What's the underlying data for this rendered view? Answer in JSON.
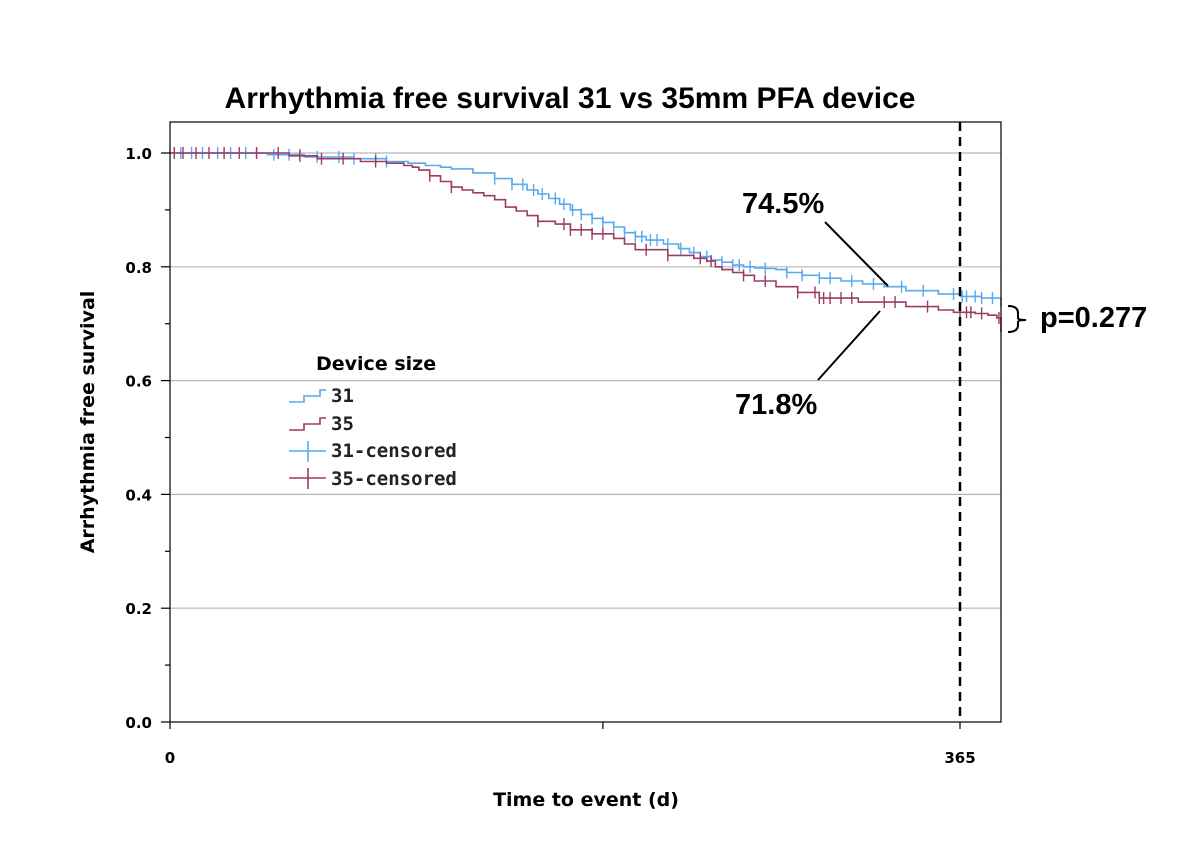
{
  "chart_data": {
    "type": "line",
    "subtype": "kaplan-meier step",
    "title": "Arrhythmia free survival 31 vs 35mm PFA device",
    "xlabel": "Time to event (d)",
    "ylabel": "Arrhythmia free survival",
    "xlim": [
      0,
      420
    ],
    "ylim": [
      0,
      1.02
    ],
    "x_ticks": [
      {
        "value": 0,
        "label": "0"
      },
      {
        "value": 200,
        "label": ""
      },
      {
        "value": 365,
        "label": "365"
      }
    ],
    "y_ticks": [
      {
        "value": 0.0,
        "label": "0.0"
      },
      {
        "value": 0.1,
        "label": ""
      },
      {
        "value": 0.2,
        "label": "0.2"
      },
      {
        "value": 0.3,
        "label": ""
      },
      {
        "value": 0.4,
        "label": "0.4"
      },
      {
        "value": 0.5,
        "label": ""
      },
      {
        "value": 0.6,
        "label": "0.6"
      },
      {
        "value": 0.7,
        "label": ""
      },
      {
        "value": 0.8,
        "label": "0.8"
      },
      {
        "value": 0.9,
        "label": ""
      },
      {
        "value": 1.0,
        "label": "1.0"
      }
    ],
    "grid": "horizontal at labeled y ticks",
    "reference_line": {
      "x": 365,
      "style": "dashed"
    },
    "legend": {
      "title": "Device size",
      "placement": "middle-left",
      "entries": [
        {
          "label": "31",
          "kind": "line",
          "color": "#5aa9ec"
        },
        {
          "label": "35",
          "kind": "line",
          "color": "#9c3b63"
        },
        {
          "label": "31-censored",
          "kind": "censor",
          "color": "#5aa9ec"
        },
        {
          "label": "35-censored",
          "kind": "censor",
          "color": "#9c3b63"
        }
      ]
    },
    "series": [
      {
        "name": "31",
        "color": "#5aa9ec",
        "x": [
          0,
          45,
          62,
          85,
          100,
          110,
          118,
          125,
          130,
          140,
          150,
          158,
          165,
          170,
          175,
          180,
          185,
          190,
          195,
          200,
          205,
          210,
          215,
          220,
          228,
          235,
          240,
          245,
          250,
          255,
          260,
          265,
          270,
          275,
          280,
          285,
          292,
          300,
          310,
          320,
          330,
          340,
          355,
          365,
          375,
          390,
          420
        ],
        "y": [
          1.0,
          0.997,
          0.993,
          0.99,
          0.985,
          0.982,
          0.978,
          0.975,
          0.972,
          0.965,
          0.955,
          0.945,
          0.935,
          0.928,
          0.92,
          0.91,
          0.9,
          0.892,
          0.885,
          0.878,
          0.87,
          0.86,
          0.853,
          0.847,
          0.84,
          0.832,
          0.825,
          0.818,
          0.812,
          0.808,
          0.803,
          0.8,
          0.798,
          0.797,
          0.795,
          0.79,
          0.785,
          0.78,
          0.775,
          0.77,
          0.765,
          0.758,
          0.752,
          0.748,
          0.745,
          0.738,
          0.73
        ],
        "censored_x": [
          2,
          5,
          10,
          15,
          22,
          28,
          35,
          40,
          48,
          55,
          60,
          68,
          78,
          85,
          95,
          100,
          150,
          158,
          163,
          168,
          172,
          178,
          182,
          186,
          190,
          195,
          200,
          205,
          210,
          215,
          218,
          222,
          225,
          230,
          236,
          242,
          248,
          255,
          260,
          263,
          268,
          275,
          285,
          292,
          300,
          305,
          315,
          325,
          338,
          348,
          362,
          366,
          368,
          372,
          375,
          380,
          385,
          390,
          395,
          400,
          405,
          410,
          415
        ]
      },
      {
        "name": "35",
        "color": "#9c3b63",
        "x": [
          0,
          55,
          68,
          88,
          100,
          108,
          112,
          115,
          120,
          125,
          130,
          135,
          140,
          145,
          150,
          155,
          160,
          165,
          170,
          178,
          185,
          195,
          205,
          210,
          215,
          230,
          242,
          248,
          252,
          255,
          260,
          265,
          270,
          280,
          290,
          300,
          318,
          340,
          355,
          362,
          372,
          378,
          382,
          390,
          395,
          400,
          420
        ],
        "y": [
          1.0,
          0.995,
          0.99,
          0.985,
          0.982,
          0.978,
          0.975,
          0.97,
          0.96,
          0.95,
          0.94,
          0.935,
          0.93,
          0.925,
          0.918,
          0.905,
          0.898,
          0.89,
          0.88,
          0.875,
          0.865,
          0.858,
          0.85,
          0.84,
          0.83,
          0.82,
          0.815,
          0.81,
          0.8,
          0.795,
          0.79,
          0.785,
          0.775,
          0.765,
          0.755,
          0.745,
          0.738,
          0.73,
          0.724,
          0.72,
          0.718,
          0.715,
          0.71,
          0.7,
          0.695,
          0.69,
          0.685
        ],
        "censored_x": [
          2,
          6,
          12,
          18,
          25,
          32,
          40,
          50,
          60,
          70,
          80,
          95,
          120,
          130,
          170,
          182,
          185,
          190,
          195,
          200,
          220,
          230,
          245,
          250,
          265,
          275,
          290,
          298,
          300,
          302,
          305,
          310,
          315,
          330,
          335,
          350,
          365,
          368,
          370,
          375,
          383,
          386,
          390,
          395,
          400,
          405,
          410
        ]
      }
    ],
    "annotations": [
      {
        "text": "74.5%"
      },
      {
        "text": "71.8%"
      },
      {
        "text": "p=0.277"
      }
    ]
  }
}
